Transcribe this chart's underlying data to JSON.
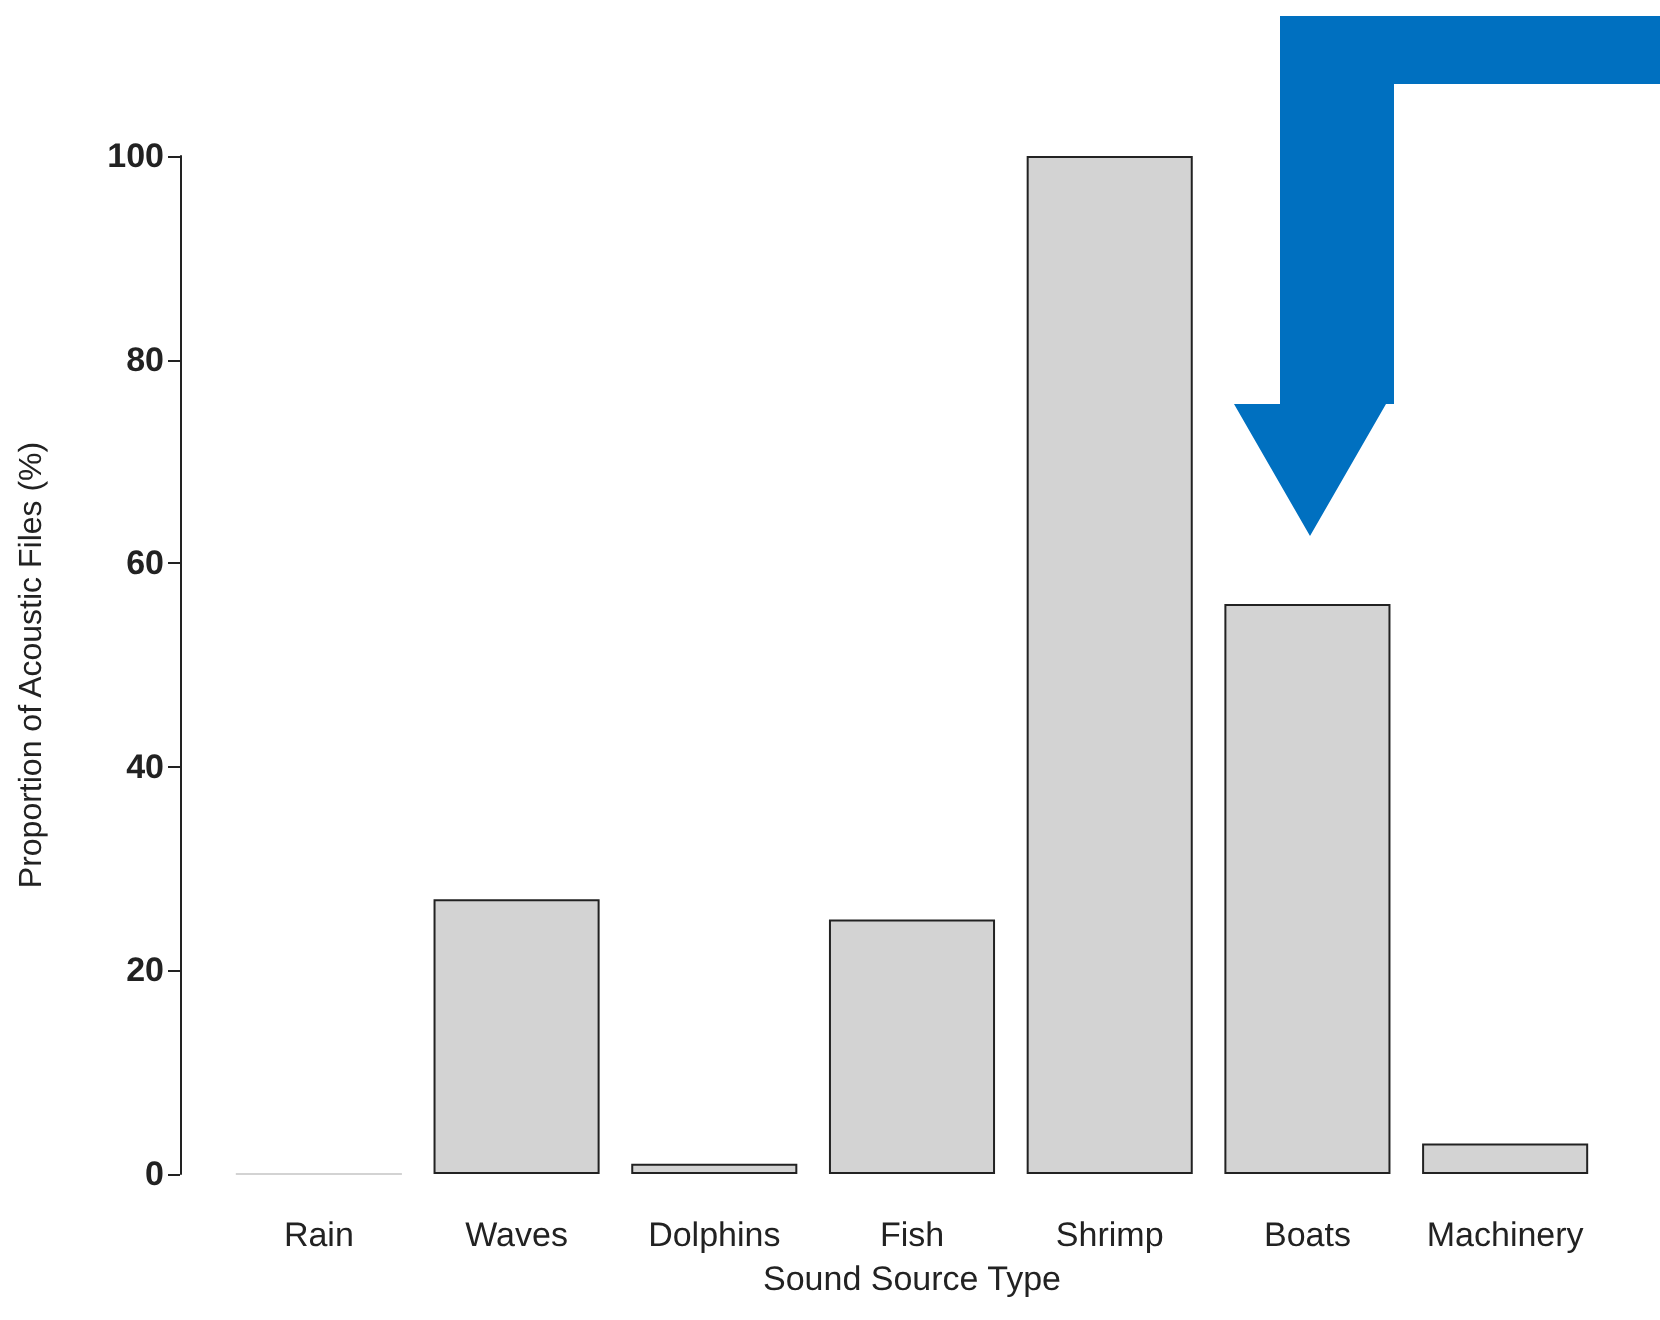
{
  "chart_data": {
    "type": "bar",
    "xlabel": "Sound Source Type",
    "ylabel": "Proportion of Acoustic Files (%)",
    "categories": [
      "Rain",
      "Waves",
      "Dolphins",
      "Fish",
      "Shrimp",
      "Boats",
      "Machinery"
    ],
    "values": [
      0,
      27,
      1,
      25,
      100,
      56,
      3
    ],
    "color": "#d3d3d3",
    "ylim": [
      0,
      100
    ],
    "yticks": [
      0,
      20,
      40,
      60,
      80,
      100
    ],
    "grid": false
  }
}
